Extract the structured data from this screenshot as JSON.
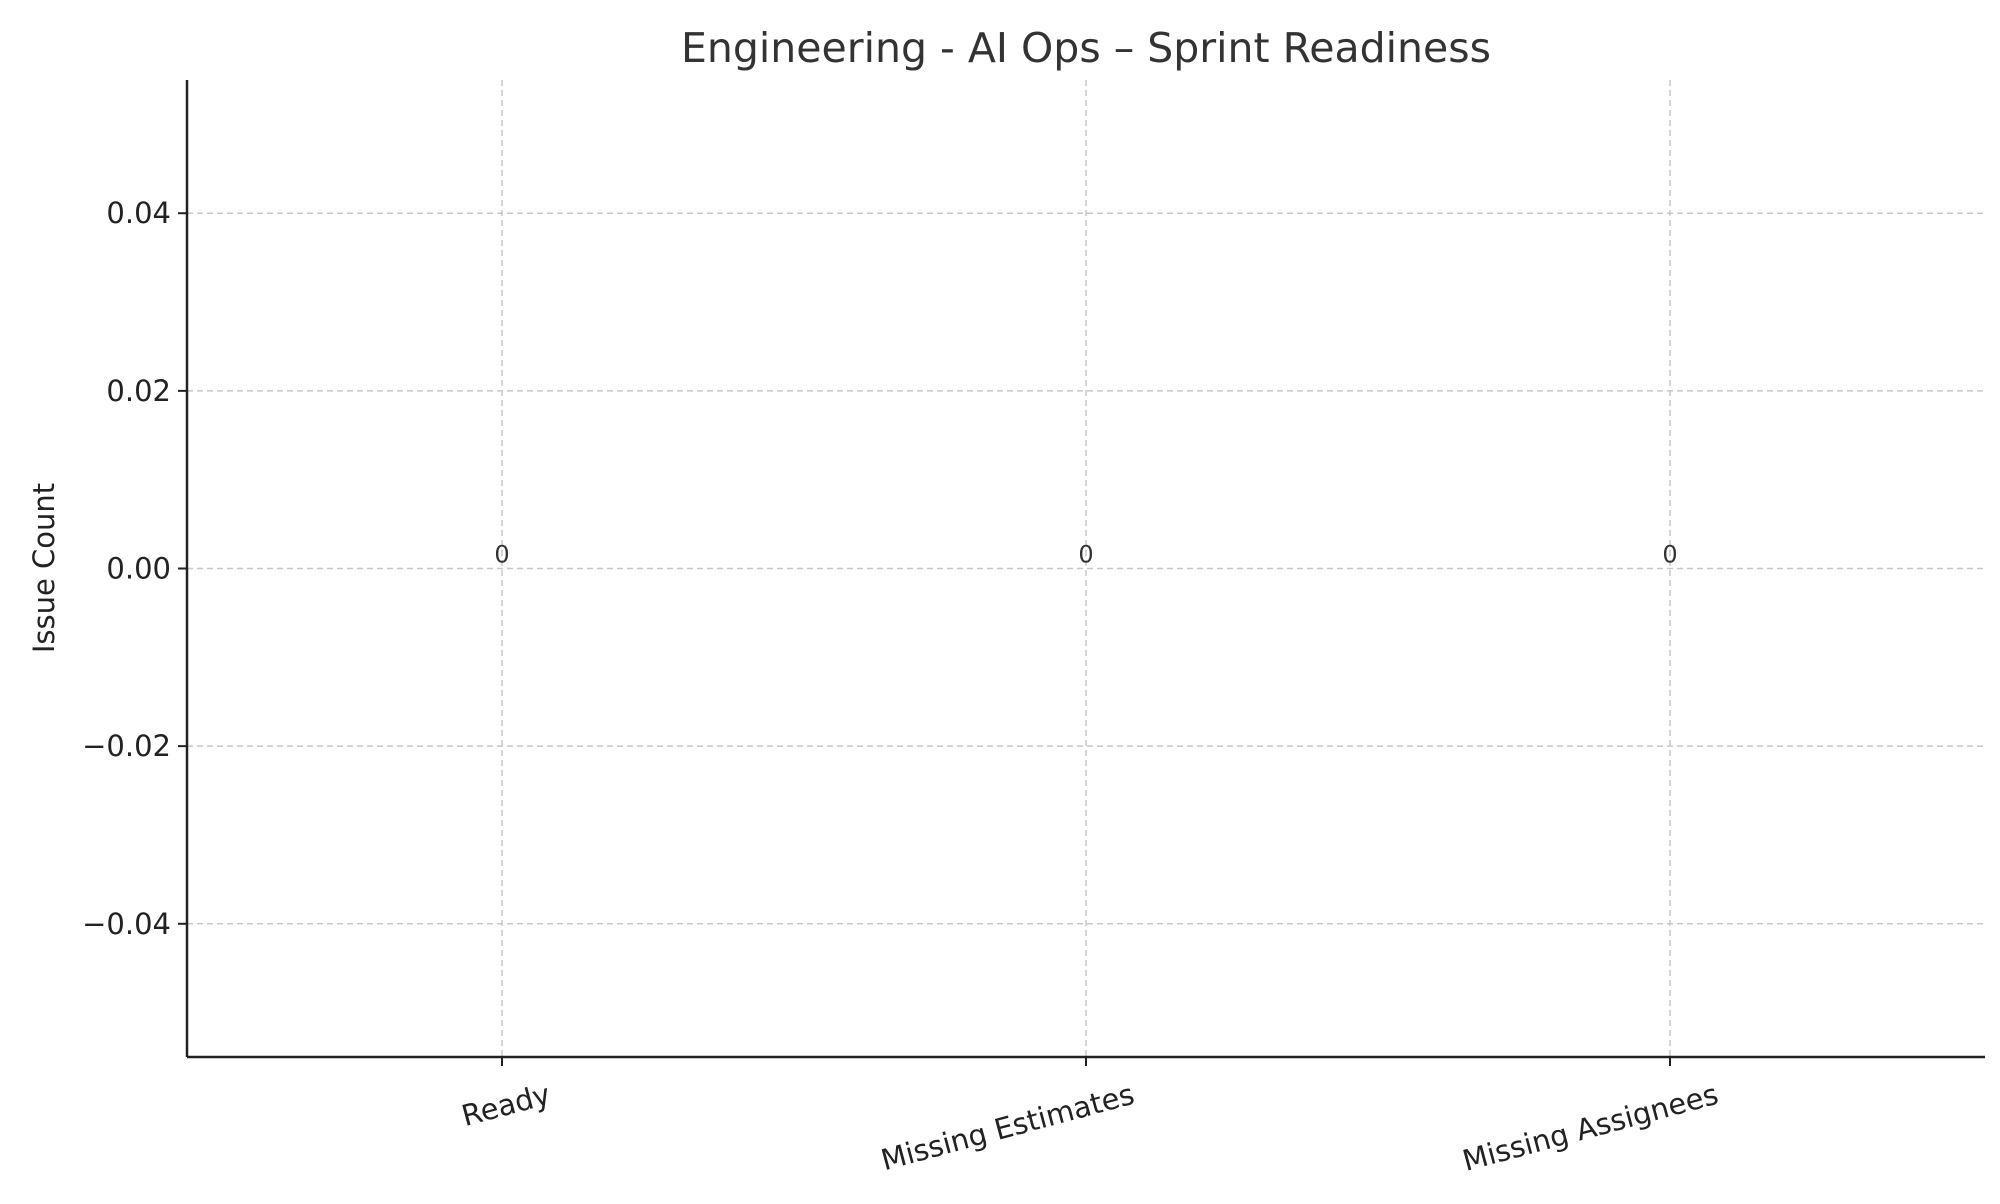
{
  "chart_data": {
    "type": "bar",
    "title": "Engineering - AI Ops – Sprint Readiness",
    "xlabel": "",
    "ylabel": "Issue Count",
    "categories": [
      "Ready",
      "Missing Estimates",
      "Missing Assignees"
    ],
    "values": [
      0,
      0,
      0
    ],
    "data_labels": [
      "0",
      "0",
      "0"
    ],
    "ylim": [
      -0.055,
      0.055
    ],
    "yticks": [
      0.04,
      0.02,
      0.0,
      -0.02,
      -0.04
    ],
    "ytick_labels": [
      "0.04",
      "0.02",
      "0.00",
      "−0.02",
      "−0.04"
    ],
    "xtick_rotation_deg": -15,
    "grid": true,
    "bar_color": "#1f77b4"
  }
}
